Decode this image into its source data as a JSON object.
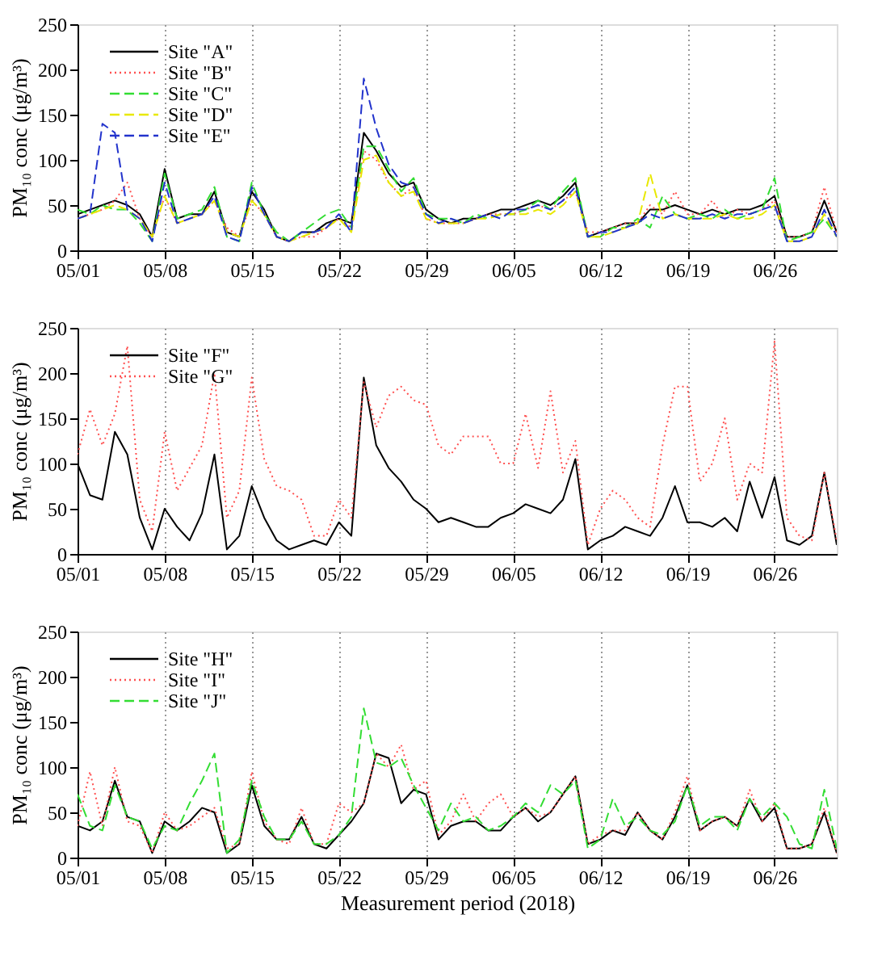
{
  "chart_data": [
    {
      "type": "line",
      "ylabel": "PM₁₀ conc (μg/m³)",
      "legend": "top left",
      "grid": "x",
      "xlim": [
        "2018-05-01",
        "2018-07-01"
      ],
      "ylim": [
        0,
        250
      ],
      "yticks": [
        0,
        50,
        100,
        150,
        200,
        250
      ],
      "xticks": [
        {
          "value": "2018-05-01",
          "label": "05/01"
        },
        {
          "value": "2018-05-08",
          "label": "05/08"
        },
        {
          "value": "2018-05-15",
          "label": "05/15"
        },
        {
          "value": "2018-05-22",
          "label": "05/22"
        },
        {
          "value": "2018-05-29",
          "label": "05/29"
        },
        {
          "value": "2018-06-05",
          "label": "06/05"
        },
        {
          "value": "2018-06-12",
          "label": "06/12"
        },
        {
          "value": "2018-06-19",
          "label": "06/19"
        },
        {
          "value": "2018-06-26",
          "label": "06/26"
        }
      ],
      "x": [
        "2018-05-01",
        "2018-05-02",
        "2018-05-03",
        "2018-05-04",
        "2018-05-05",
        "2018-05-06",
        "2018-05-07",
        "2018-05-08",
        "2018-05-09",
        "2018-05-10",
        "2018-05-11",
        "2018-05-12",
        "2018-05-13",
        "2018-05-14",
        "2018-05-15",
        "2018-05-16",
        "2018-05-17",
        "2018-05-18",
        "2018-05-19",
        "2018-05-20",
        "2018-05-21",
        "2018-05-22",
        "2018-05-23",
        "2018-05-24",
        "2018-05-25",
        "2018-05-26",
        "2018-05-27",
        "2018-05-28",
        "2018-05-29",
        "2018-05-30",
        "2018-05-31",
        "2018-06-01",
        "2018-06-02",
        "2018-06-03",
        "2018-06-04",
        "2018-06-05",
        "2018-06-06",
        "2018-06-07",
        "2018-06-08",
        "2018-06-09",
        "2018-06-10",
        "2018-06-11",
        "2018-06-12",
        "2018-06-13",
        "2018-06-14",
        "2018-06-15",
        "2018-06-16",
        "2018-06-17",
        "2018-06-18",
        "2018-06-19",
        "2018-06-20",
        "2018-06-21",
        "2018-06-22",
        "2018-06-23",
        "2018-06-24",
        "2018-06-25",
        "2018-06-26",
        "2018-06-27",
        "2018-06-28",
        "2018-06-29",
        "2018-06-30",
        "2018-07-01"
      ],
      "series": [
        {
          "name": "Site \"A\"",
          "color": "#000000",
          "line_style": "solid",
          "values": [
            40,
            45,
            50,
            55,
            50,
            40,
            15,
            90,
            35,
            40,
            40,
            65,
            20,
            15,
            65,
            45,
            15,
            10,
            20,
            20,
            30,
            35,
            30,
            130,
            110,
            85,
            70,
            75,
            45,
            35,
            30,
            35,
            35,
            40,
            45,
            45,
            50,
            55,
            50,
            60,
            75,
            15,
            20,
            25,
            30,
            30,
            45,
            45,
            50,
            45,
            40,
            45,
            40,
            45,
            45,
            50,
            60,
            15,
            15,
            20,
            55,
            20
          ]
        },
        {
          "name": "Site \"B\"",
          "color": "#ff5050",
          "line_style": "dotted",
          "values": [
            35,
            40,
            45,
            55,
            75,
            35,
            15,
            60,
            30,
            35,
            40,
            55,
            25,
            15,
            55,
            40,
            15,
            10,
            15,
            15,
            25,
            35,
            25,
            110,
            100,
            75,
            60,
            70,
            35,
            30,
            30,
            30,
            35,
            40,
            40,
            40,
            45,
            50,
            45,
            55,
            65,
            20,
            20,
            25,
            30,
            30,
            50,
            40,
            65,
            40,
            40,
            55,
            35,
            45,
            40,
            45,
            55,
            15,
            15,
            20,
            70,
            20
          ]
        },
        {
          "name": "Site \"C\"",
          "color": "#33dd33",
          "line_style": "dashed",
          "values": [
            45,
            40,
            50,
            45,
            45,
            30,
            10,
            85,
            35,
            40,
            45,
            70,
            15,
            10,
            75,
            40,
            20,
            10,
            20,
            30,
            40,
            45,
            25,
            115,
            115,
            90,
            65,
            80,
            40,
            35,
            35,
            30,
            40,
            35,
            40,
            40,
            45,
            55,
            45,
            65,
            80,
            15,
            15,
            25,
            25,
            35,
            25,
            60,
            40,
            35,
            40,
            35,
            45,
            35,
            40,
            45,
            80,
            10,
            15,
            20,
            35,
            15
          ]
        },
        {
          "name": "Site \"D\"",
          "color": "#e8e800",
          "line_style": "dashed",
          "values": [
            35,
            40,
            45,
            50,
            45,
            35,
            15,
            60,
            30,
            35,
            40,
            55,
            20,
            15,
            55,
            40,
            15,
            10,
            15,
            20,
            25,
            35,
            20,
            100,
            105,
            75,
            60,
            65,
            35,
            30,
            30,
            30,
            35,
            35,
            40,
            40,
            40,
            45,
            40,
            50,
            65,
            15,
            15,
            20,
            25,
            30,
            85,
            35,
            40,
            35,
            35,
            35,
            40,
            35,
            35,
            40,
            50,
            10,
            10,
            15,
            40,
            15
          ]
        },
        {
          "name": "Site \"E\"",
          "color": "#2233cc",
          "line_style": "dashed",
          "values": [
            35,
            40,
            140,
            130,
            45,
            35,
            10,
            75,
            30,
            35,
            40,
            60,
            15,
            10,
            70,
            40,
            15,
            10,
            20,
            20,
            25,
            40,
            20,
            190,
            135,
            95,
            75,
            70,
            40,
            30,
            35,
            30,
            35,
            40,
            35,
            45,
            45,
            50,
            45,
            55,
            70,
            15,
            20,
            20,
            25,
            30,
            40,
            35,
            40,
            35,
            35,
            40,
            35,
            40,
            40,
            45,
            50,
            10,
            10,
            15,
            45,
            15
          ]
        }
      ]
    },
    {
      "type": "line",
      "ylabel": "PM₁₀ conc (μg/m³)",
      "legend": "top left",
      "grid": "x",
      "xlim": [
        "2018-05-01",
        "2018-07-01"
      ],
      "ylim": [
        0,
        250
      ],
      "yticks": [
        0,
        50,
        100,
        150,
        200,
        250
      ],
      "xticks": [
        {
          "value": "2018-05-01",
          "label": "05/01"
        },
        {
          "value": "2018-05-08",
          "label": "05/08"
        },
        {
          "value": "2018-05-15",
          "label": "05/15"
        },
        {
          "value": "2018-05-22",
          "label": "05/22"
        },
        {
          "value": "2018-05-29",
          "label": "05/29"
        },
        {
          "value": "2018-06-05",
          "label": "06/05"
        },
        {
          "value": "2018-06-12",
          "label": "06/12"
        },
        {
          "value": "2018-06-19",
          "label": "06/19"
        },
        {
          "value": "2018-06-26",
          "label": "06/26"
        }
      ],
      "x": [
        "2018-05-01",
        "2018-05-02",
        "2018-05-03",
        "2018-05-04",
        "2018-05-05",
        "2018-05-06",
        "2018-05-07",
        "2018-05-08",
        "2018-05-09",
        "2018-05-10",
        "2018-05-11",
        "2018-05-12",
        "2018-05-13",
        "2018-05-14",
        "2018-05-15",
        "2018-05-16",
        "2018-05-17",
        "2018-05-18",
        "2018-05-19",
        "2018-05-20",
        "2018-05-21",
        "2018-05-22",
        "2018-05-23",
        "2018-05-24",
        "2018-05-25",
        "2018-05-26",
        "2018-05-27",
        "2018-05-28",
        "2018-05-29",
        "2018-05-30",
        "2018-05-31",
        "2018-06-01",
        "2018-06-02",
        "2018-06-03",
        "2018-06-04",
        "2018-06-05",
        "2018-06-06",
        "2018-06-07",
        "2018-06-08",
        "2018-06-09",
        "2018-06-10",
        "2018-06-11",
        "2018-06-12",
        "2018-06-13",
        "2018-06-14",
        "2018-06-15",
        "2018-06-16",
        "2018-06-17",
        "2018-06-18",
        "2018-06-19",
        "2018-06-20",
        "2018-06-21",
        "2018-06-22",
        "2018-06-23",
        "2018-06-24",
        "2018-06-25",
        "2018-06-26",
        "2018-06-27",
        "2018-06-28",
        "2018-06-29",
        "2018-06-30",
        "2018-07-01"
      ],
      "series": [
        {
          "name": "Site \"F\"",
          "color": "#000000",
          "line_style": "solid",
          "values": [
            100,
            65,
            60,
            135,
            110,
            40,
            5,
            50,
            30,
            15,
            45,
            110,
            5,
            20,
            75,
            40,
            15,
            5,
            10,
            15,
            10,
            35,
            20,
            195,
            120,
            95,
            80,
            60,
            50,
            35,
            40,
            35,
            30,
            30,
            40,
            45,
            55,
            50,
            45,
            60,
            105,
            5,
            15,
            20,
            30,
            25,
            20,
            40,
            75,
            35,
            35,
            30,
            40,
            25,
            80,
            40,
            85,
            15,
            10,
            20,
            90,
            10
          ]
        },
        {
          "name": "Site \"G\"",
          "color": "#ff5050",
          "line_style": "dotted",
          "values": [
            110,
            160,
            120,
            155,
            230,
            60,
            25,
            135,
            70,
            95,
            120,
            200,
            40,
            70,
            195,
            105,
            75,
            70,
            60,
            20,
            20,
            60,
            40,
            190,
            140,
            175,
            185,
            170,
            165,
            120,
            110,
            130,
            130,
            130,
            100,
            100,
            155,
            95,
            180,
            90,
            125,
            10,
            50,
            70,
            60,
            40,
            30,
            120,
            185,
            185,
            80,
            100,
            150,
            60,
            100,
            90,
            235,
            40,
            20,
            15,
            90,
            15
          ]
        }
      ]
    },
    {
      "type": "line",
      "ylabel": "PM₁₀ conc (μg/m³)",
      "xlabel": "Measurement period (2018)",
      "legend": "top left",
      "grid": "x",
      "xlim": [
        "2018-05-01",
        "2018-07-01"
      ],
      "ylim": [
        0,
        250
      ],
      "yticks": [
        0,
        50,
        100,
        150,
        200,
        250
      ],
      "xticks": [
        {
          "value": "2018-05-01",
          "label": "05/01"
        },
        {
          "value": "2018-05-08",
          "label": "05/08"
        },
        {
          "value": "2018-05-15",
          "label": "05/15"
        },
        {
          "value": "2018-05-22",
          "label": "05/22"
        },
        {
          "value": "2018-05-29",
          "label": "05/29"
        },
        {
          "value": "2018-06-05",
          "label": "06/05"
        },
        {
          "value": "2018-06-12",
          "label": "06/12"
        },
        {
          "value": "2018-06-19",
          "label": "06/19"
        },
        {
          "value": "2018-06-26",
          "label": "06/26"
        }
      ],
      "x": [
        "2018-05-01",
        "2018-05-02",
        "2018-05-03",
        "2018-05-04",
        "2018-05-05",
        "2018-05-06",
        "2018-05-07",
        "2018-05-08",
        "2018-05-09",
        "2018-05-10",
        "2018-05-11",
        "2018-05-12",
        "2018-05-13",
        "2018-05-14",
        "2018-05-15",
        "2018-05-16",
        "2018-05-17",
        "2018-05-18",
        "2018-05-19",
        "2018-05-20",
        "2018-05-21",
        "2018-05-22",
        "2018-05-23",
        "2018-05-24",
        "2018-05-25",
        "2018-05-26",
        "2018-05-27",
        "2018-05-28",
        "2018-05-29",
        "2018-05-30",
        "2018-05-31",
        "2018-06-01",
        "2018-06-02",
        "2018-06-03",
        "2018-06-04",
        "2018-06-05",
        "2018-06-06",
        "2018-06-07",
        "2018-06-08",
        "2018-06-09",
        "2018-06-10",
        "2018-06-11",
        "2018-06-12",
        "2018-06-13",
        "2018-06-14",
        "2018-06-15",
        "2018-06-16",
        "2018-06-17",
        "2018-06-18",
        "2018-06-19",
        "2018-06-20",
        "2018-06-21",
        "2018-06-22",
        "2018-06-23",
        "2018-06-24",
        "2018-06-25",
        "2018-06-26",
        "2018-06-27",
        "2018-06-28",
        "2018-06-29",
        "2018-06-30",
        "2018-07-01"
      ],
      "series": [
        {
          "name": "Site \"H\"",
          "color": "#000000",
          "line_style": "solid",
          "values": [
            35,
            30,
            40,
            85,
            45,
            40,
            5,
            40,
            30,
            40,
            55,
            50,
            5,
            15,
            80,
            35,
            20,
            20,
            45,
            15,
            10,
            25,
            40,
            60,
            115,
            110,
            60,
            75,
            70,
            20,
            35,
            40,
            40,
            30,
            30,
            45,
            55,
            40,
            50,
            70,
            90,
            15,
            20,
            30,
            25,
            50,
            30,
            20,
            45,
            80,
            30,
            40,
            45,
            35,
            65,
            40,
            55,
            10,
            10,
            15,
            50,
            5
          ]
        },
        {
          "name": "Site \"I\"",
          "color": "#ff5050",
          "line_style": "dotted",
          "values": [
            35,
            95,
            35,
            100,
            40,
            35,
            5,
            50,
            30,
            35,
            45,
            55,
            10,
            15,
            95,
            40,
            20,
            15,
            55,
            15,
            15,
            60,
            50,
            60,
            115,
            100,
            125,
            75,
            85,
            25,
            40,
            70,
            40,
            60,
            70,
            45,
            55,
            45,
            50,
            70,
            90,
            15,
            25,
            30,
            30,
            50,
            30,
            20,
            50,
            90,
            30,
            40,
            45,
            35,
            75,
            40,
            60,
            10,
            10,
            15,
            55,
            5
          ]
        },
        {
          "name": "Site \"J\"",
          "color": "#33dd33",
          "line_style": "dashed",
          "values": [
            70,
            35,
            30,
            80,
            45,
            40,
            10,
            35,
            30,
            60,
            85,
            115,
            5,
            20,
            85,
            45,
            20,
            20,
            40,
            15,
            15,
            25,
            45,
            165,
            105,
            100,
            110,
            80,
            55,
            30,
            60,
            40,
            45,
            30,
            35,
            45,
            60,
            50,
            80,
            70,
            85,
            10,
            20,
            65,
            35,
            45,
            30,
            25,
            40,
            80,
            35,
            45,
            45,
            30,
            65,
            45,
            60,
            45,
            15,
            10,
            75,
            10
          ]
        }
      ]
    }
  ]
}
